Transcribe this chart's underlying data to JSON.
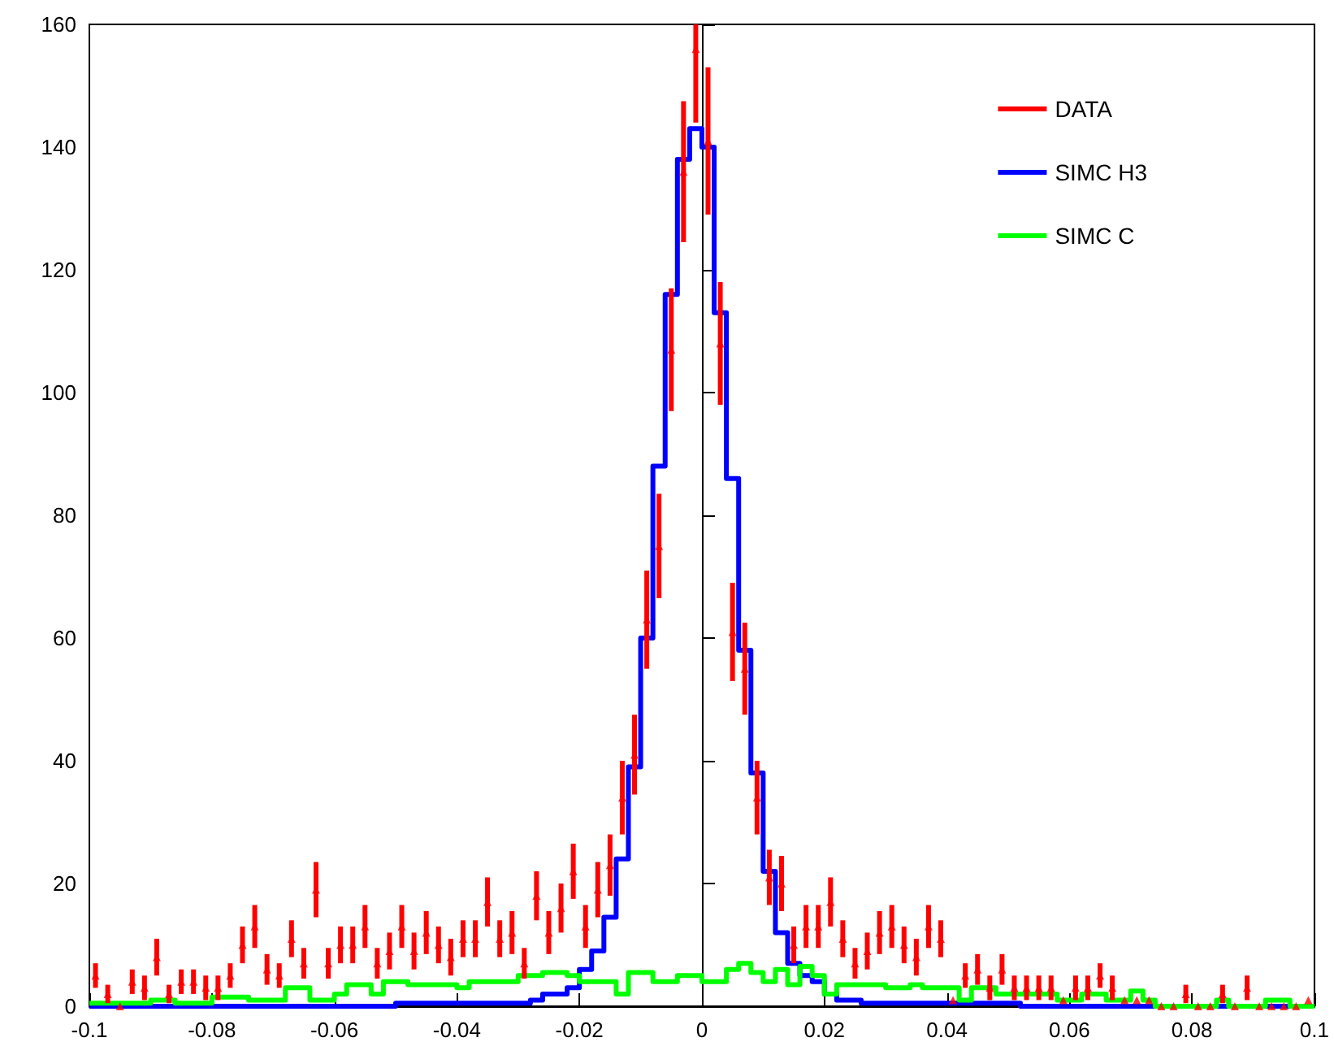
{
  "chart_data": {
    "type": "histogram",
    "bins": [
      -0.1,
      -0.098,
      -0.096,
      -0.094,
      -0.092,
      -0.09,
      -0.088,
      -0.086,
      -0.084,
      -0.082,
      -0.08,
      -0.078,
      -0.076,
      -0.074,
      -0.072,
      -0.07,
      -0.068,
      -0.066,
      -0.064,
      -0.062,
      -0.06,
      -0.058,
      -0.056,
      -0.054,
      -0.052,
      -0.05,
      -0.048,
      -0.046,
      -0.044,
      -0.042,
      -0.04,
      -0.038,
      -0.036,
      -0.034,
      -0.032,
      -0.03,
      -0.028,
      -0.026,
      -0.024,
      -0.022,
      -0.02,
      -0.018,
      -0.016,
      -0.014,
      -0.012,
      -0.01,
      -0.008,
      -0.006,
      -0.004,
      -0.002,
      0,
      0.002,
      0.004,
      0.006,
      0.008,
      0.01,
      0.012,
      0.014,
      0.016,
      0.018,
      0.02,
      0.022,
      0.024,
      0.026,
      0.028,
      0.03,
      0.032,
      0.034,
      0.036,
      0.038,
      0.04,
      0.042,
      0.044,
      0.046,
      0.048,
      0.05,
      0.052,
      0.054,
      0.056,
      0.058,
      0.06,
      0.062,
      0.064,
      0.066,
      0.068,
      0.07,
      0.072,
      0.074,
      0.076,
      0.078,
      0.08,
      0.082,
      0.084,
      0.086,
      0.088,
      0.09,
      0.092,
      0.094,
      0.096,
      0.098,
      0.1
    ],
    "series": [
      {
        "name": "DATA",
        "type": "scatter",
        "color": "#ff0000",
        "x": [
          -0.099,
          -0.097,
          -0.095,
          -0.093,
          -0.091,
          -0.089,
          -0.087,
          -0.085,
          -0.083,
          -0.081,
          -0.079,
          -0.077,
          -0.075,
          -0.073,
          -0.071,
          -0.069,
          -0.067,
          -0.065,
          -0.063,
          -0.061,
          -0.059,
          -0.057,
          -0.055,
          -0.053,
          -0.051,
          -0.049,
          -0.047,
          -0.045,
          -0.043,
          -0.041,
          -0.039,
          -0.037,
          -0.035,
          -0.033,
          -0.031,
          -0.029,
          -0.027,
          -0.025,
          -0.023,
          -0.021,
          -0.019,
          -0.017,
          -0.015,
          -0.013,
          -0.011,
          -0.009,
          -0.007,
          -0.005,
          -0.003,
          -0.001,
          0.001,
          0.003,
          0.005,
          0.007,
          0.009,
          0.011,
          0.013,
          0.015,
          0.017,
          0.019,
          0.021,
          0.023,
          0.025,
          0.027,
          0.029,
          0.031,
          0.033,
          0.035,
          0.037,
          0.039,
          0.041,
          0.043,
          0.045,
          0.047,
          0.049,
          0.051,
          0.053,
          0.055,
          0.057,
          0.059,
          0.061,
          0.063,
          0.065,
          0.067,
          0.069,
          0.071,
          0.073,
          0.075,
          0.077,
          0.079,
          0.081,
          0.083,
          0.085,
          0.087,
          0.089,
          0.091,
          0.093,
          0.095,
          0.097,
          0.099
        ],
        "values": [
          5,
          2,
          0,
          4,
          3,
          8,
          2,
          4,
          4,
          3,
          3,
          5,
          10,
          13,
          6,
          5,
          11,
          7,
          19,
          7,
          10,
          10,
          13,
          7,
          9,
          13,
          9,
          12,
          10,
          8,
          11,
          11,
          17,
          11,
          12,
          7,
          18,
          12,
          16,
          22,
          13,
          19,
          23,
          34,
          41,
          63,
          75,
          107,
          136,
          156,
          141,
          108,
          61,
          55,
          34,
          21,
          20,
          10,
          13,
          13,
          17,
          11,
          7,
          9,
          12,
          13,
          10,
          8,
          13,
          11,
          1,
          5,
          6,
          3,
          6,
          3,
          3,
          3,
          3,
          1,
          3,
          3,
          5,
          3,
          1,
          1,
          1,
          0,
          0,
          2,
          0,
          0,
          2,
          0,
          3,
          0,
          0,
          0,
          0,
          1
        ],
        "errors": [
          2,
          1.5,
          null,
          2,
          2,
          3,
          1.5,
          2,
          2,
          2,
          2,
          2,
          3,
          3.5,
          2.5,
          2,
          3,
          2.5,
          4.5,
          2.5,
          3,
          3,
          3.5,
          2.5,
          3,
          3.5,
          3,
          3.5,
          3,
          3,
          3,
          3,
          4,
          3,
          3.5,
          2.5,
          4,
          3.5,
          4,
          4.5,
          3.5,
          4.5,
          5,
          6,
          6.5,
          8,
          8.5,
          10,
          11.5,
          [
            144,
            160
          ],
          12,
          10,
          8,
          7.5,
          6,
          4.5,
          4.5,
          3,
          3.5,
          3.5,
          4,
          3,
          2.5,
          3,
          3.5,
          3.5,
          3,
          3,
          3.5,
          3,
          null,
          2,
          2.5,
          2,
          2.5,
          2,
          2,
          2,
          2,
          null,
          2,
          2,
          2,
          2,
          null,
          null,
          null,
          null,
          null,
          1.5,
          null,
          null,
          1.5,
          null,
          2,
          null,
          null,
          null,
          null,
          null
        ]
      },
      {
        "name": "SIMC H3",
        "color": "#0000ff",
        "values": [
          0,
          0,
          0,
          0,
          0,
          0,
          0,
          0,
          0,
          0,
          0,
          0,
          0,
          0,
          0,
          0,
          0,
          0,
          0,
          0,
          0,
          0,
          0,
          0,
          0,
          0.5,
          0.5,
          0.5,
          0.5,
          0.5,
          0.5,
          0.5,
          0.5,
          0.5,
          0.5,
          0.5,
          1,
          2,
          2,
          3,
          6,
          9,
          14.5,
          24,
          39,
          60,
          88,
          116,
          138,
          143,
          140,
          113,
          86,
          58,
          38,
          22,
          12,
          7,
          5,
          4,
          2,
          1,
          1,
          0.5,
          0.5,
          0.5,
          0.5,
          0.5,
          0.5,
          0.5,
          0.5,
          0.5,
          0.5,
          0.5,
          0.5,
          0.5,
          0,
          0,
          0,
          0,
          0,
          0,
          0,
          0,
          0,
          0,
          0,
          0,
          0,
          0,
          0,
          0,
          0,
          0,
          0,
          0,
          0,
          0,
          0,
          0
        ]
      },
      {
        "name": "SIMC C",
        "color": "#00ff00",
        "values": [
          0.5,
          0.5,
          0.5,
          0.5,
          0.5,
          1,
          1,
          0.5,
          0.5,
          0.5,
          1.5,
          1.5,
          1.5,
          1,
          1,
          1,
          3,
          3,
          1,
          1,
          2,
          3.5,
          3.5,
          2,
          4,
          4,
          3.5,
          3.5,
          3.5,
          3.5,
          3,
          4,
          4,
          4,
          4,
          5,
          5,
          5.5,
          5.5,
          5,
          4,
          4,
          4,
          2,
          5.5,
          5.5,
          4,
          4,
          5,
          5,
          4,
          4,
          6,
          7,
          5.5,
          4,
          6,
          3.5,
          6.5,
          5,
          2,
          3.5,
          3.5,
          3.5,
          3.5,
          3,
          3,
          3.5,
          3,
          3,
          3,
          1,
          3,
          3,
          2,
          2,
          2,
          2,
          2,
          1,
          1,
          2,
          2,
          1,
          1,
          2.5,
          1,
          0,
          0,
          0,
          0,
          0,
          1,
          0,
          0,
          0,
          1,
          1,
          0,
          0
        ]
      }
    ],
    "xlim": [
      -0.1,
      0.1
    ],
    "xticks": [
      -0.1,
      -0.08,
      -0.06,
      -0.04,
      -0.02,
      0,
      0.02,
      0.04,
      0.06,
      0.08,
      0.1
    ],
    "ylim": [
      0,
      160
    ],
    "yticks": [
      0,
      20,
      40,
      60,
      80,
      100,
      120,
      140,
      160
    ],
    "marker": "triangle",
    "legend": "top right"
  }
}
